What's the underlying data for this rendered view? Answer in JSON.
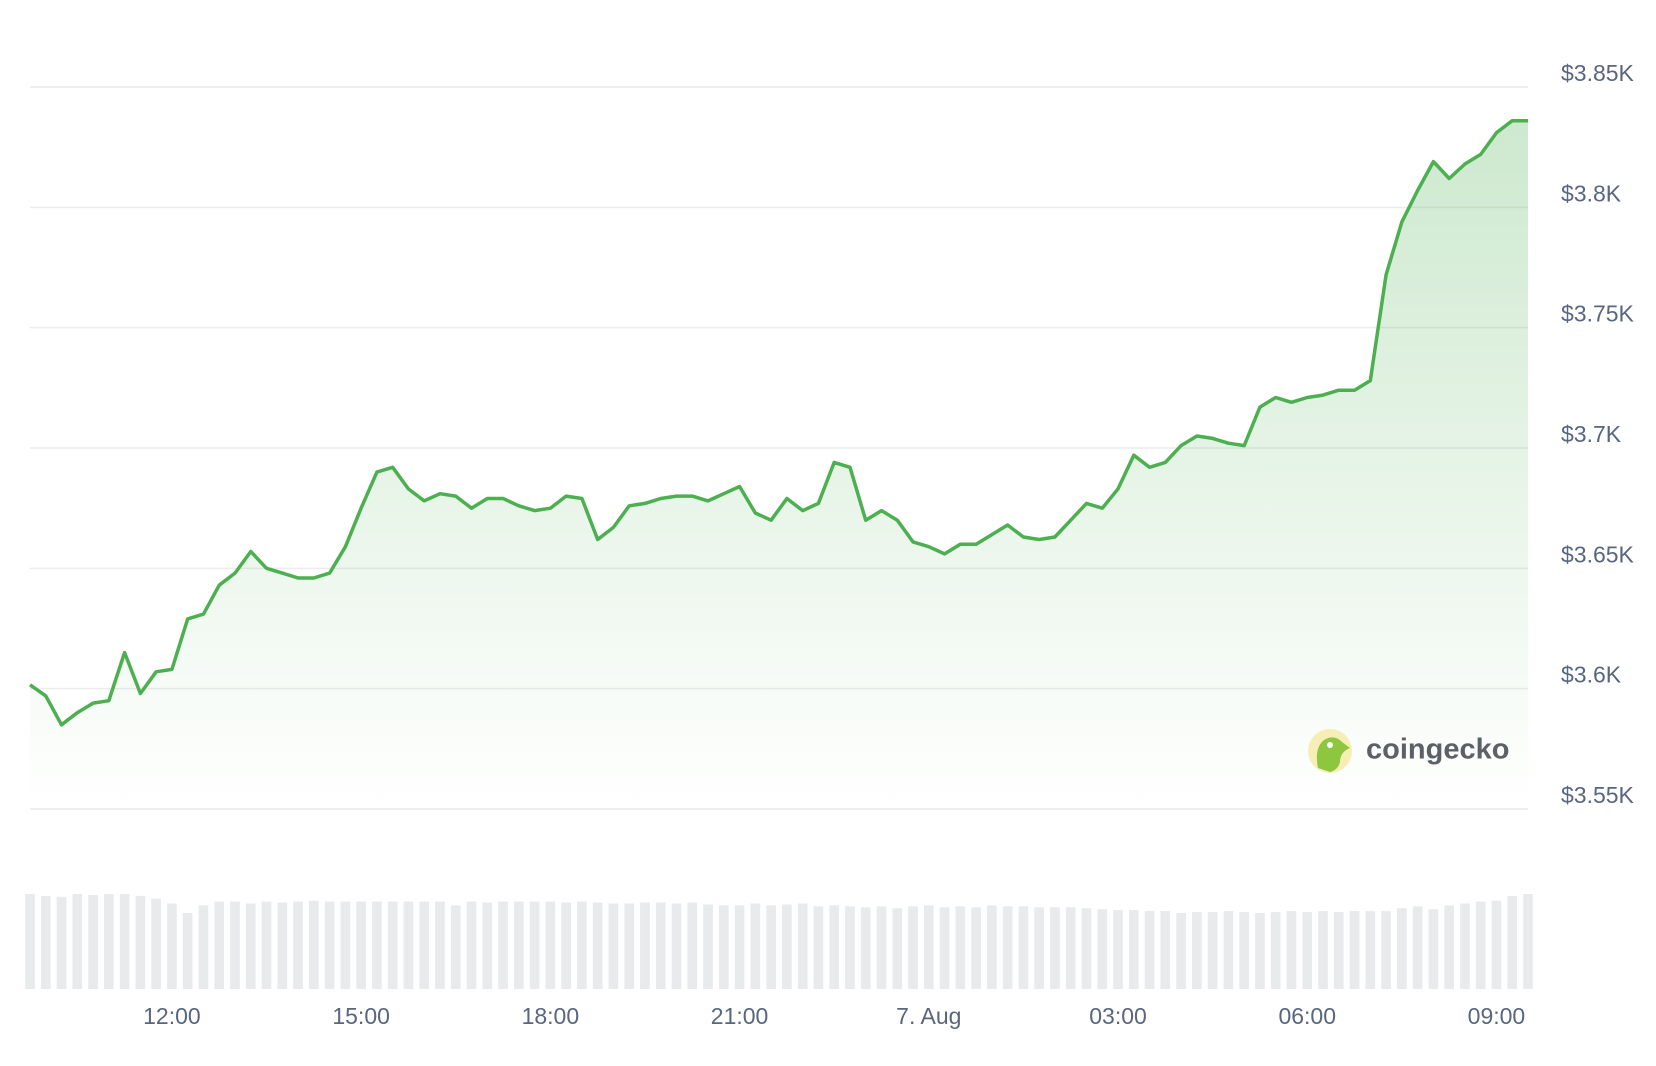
{
  "chart_data": {
    "type": "area",
    "color": "#4caf50",
    "watermark": "coingecko",
    "categories": [
      null,
      null,
      null,
      null,
      null,
      null,
      null,
      null,
      null,
      "12:00",
      null,
      null,
      null,
      null,
      null,
      null,
      null,
      null,
      null,
      null,
      null,
      "15:00",
      null,
      null,
      null,
      null,
      null,
      null,
      null,
      null,
      null,
      null,
      null,
      "18:00",
      null,
      null,
      null,
      null,
      null,
      null,
      null,
      null,
      null,
      null,
      null,
      "21:00",
      null,
      null,
      null,
      null,
      null,
      null,
      null,
      null,
      null,
      null,
      null,
      "7. Aug",
      null,
      null,
      null,
      null,
      null,
      null,
      null,
      null,
      null,
      null,
      null,
      "03:00",
      null,
      null,
      null,
      null,
      null,
      null,
      null,
      null,
      null,
      null,
      null,
      "06:00",
      null,
      null,
      null,
      null,
      null,
      null,
      null,
      null,
      null,
      null,
      null,
      "09:00",
      null,
      null
    ],
    "values": [
      3601.6,
      3597,
      3585,
      3590,
      3594,
      3595,
      3615,
      3598,
      3607,
      3608,
      3629,
      3631,
      3643,
      3648,
      3657,
      3650,
      3648,
      3646,
      3646,
      3648,
      3659,
      3675,
      3690,
      3692,
      3683,
      3678,
      3681,
      3680,
      3675,
      3679,
      3679,
      3676,
      3674,
      3675,
      3680,
      3679,
      3662,
      3667,
      3676,
      3677,
      3679,
      3680,
      3680,
      3678,
      3681,
      3684,
      3673,
      3670,
      3679,
      3674,
      3677,
      3694,
      3692,
      3670,
      3674,
      3670,
      3661,
      3659,
      3656,
      3660,
      3660,
      3664,
      3668,
      3663,
      3662,
      3663,
      3670,
      3677,
      3675,
      3683,
      3697,
      3692,
      3694,
      3701,
      3705,
      3704,
      3702,
      3701,
      3717,
      3721,
      3719,
      3721,
      3722,
      3724,
      3724,
      3728,
      3772,
      3794,
      3807,
      3819,
      3812,
      3818,
      3822,
      3831,
      3836,
      3836
    ],
    "volume": {
      "color": "#e9eaec",
      "values": [
        100,
        98,
        97,
        100,
        99,
        100,
        100,
        98,
        95,
        90,
        80,
        88,
        92,
        92,
        90,
        92,
        91,
        92,
        93,
        92,
        92,
        92,
        92,
        92,
        92,
        92,
        92,
        88,
        92,
        91,
        92,
        92,
        92,
        92,
        91,
        92,
        91,
        90,
        90,
        91,
        91,
        90,
        91,
        89,
        88,
        88,
        90,
        88,
        89,
        90,
        87,
        88,
        87,
        86,
        87,
        85,
        87,
        88,
        86,
        87,
        86,
        88,
        87,
        87,
        86,
        86,
        86,
        85,
        84,
        83,
        83,
        82,
        82,
        80,
        81,
        81,
        82,
        81,
        80,
        81,
        82,
        81,
        82,
        81,
        82,
        82,
        82,
        85,
        87,
        84,
        88,
        90,
        92,
        93,
        98,
        100
      ]
    },
    "ylim": [
      3550,
      3850
    ],
    "yticks": [
      {
        "value": 3550,
        "label": "$3.55K"
      },
      {
        "value": 3600,
        "label": "$3.6K"
      },
      {
        "value": 3650,
        "label": "$3.65K"
      },
      {
        "value": 3700,
        "label": "$3.7K"
      },
      {
        "value": 3750,
        "label": "$3.75K"
      },
      {
        "value": 3800,
        "label": "$3.8K"
      },
      {
        "value": 3850,
        "label": "$3.85K"
      }
    ],
    "grid": true
  }
}
